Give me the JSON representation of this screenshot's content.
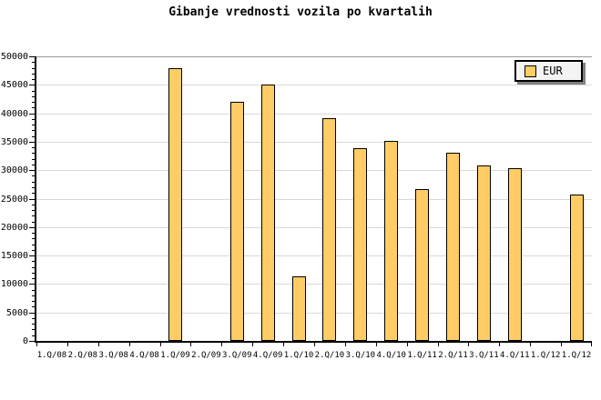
{
  "title": "Gibanje vrednosti vozila po kvartalih",
  "legend": {
    "label": "EUR"
  },
  "colors": {
    "background": "#ffffff",
    "bar_fill": "#ffcc66",
    "bar_border": "#000000",
    "grid": "#d9d9d9",
    "grid_top": "#999999",
    "axis": "#000000",
    "text": "#000000",
    "legend_bg": "#f4f4f4",
    "legend_border": "#000000",
    "legend_shadow": "#808080"
  },
  "chart_data": {
    "type": "bar",
    "title": "Gibanje vrednosti vozila po kvartalih",
    "xlabel": "",
    "ylabel": "",
    "categories": [
      "1.Q/08",
      "2.Q/08",
      "3.Q/08",
      "4.Q/08",
      "1.Q/09",
      "2.Q/09",
      "3.Q/09",
      "4.Q/09",
      "1.Q/10",
      "2.Q/10",
      "3.Q/10",
      "4.Q/10",
      "1.Q/11",
      "2.Q/11",
      "3.Q/11",
      "4.Q/11",
      "1.Q/12",
      "1.Q/12"
    ],
    "series": [
      {
        "name": "EUR",
        "values": [
          null,
          null,
          null,
          null,
          48000,
          null,
          42000,
          45000,
          11300,
          39200,
          33800,
          35200,
          26700,
          33000,
          30800,
          30400,
          null,
          25800
        ]
      }
    ],
    "ylim": [
      0,
      50000
    ],
    "ytick_step": 5000,
    "minor_tick_step": 1000,
    "yticklabels": [
      "0",
      "5000",
      "10000",
      "15000",
      "20000",
      "25000",
      "30000",
      "35000",
      "40000",
      "45000",
      "50000"
    ],
    "grid": "horizontal",
    "legend_position": "top-right"
  }
}
